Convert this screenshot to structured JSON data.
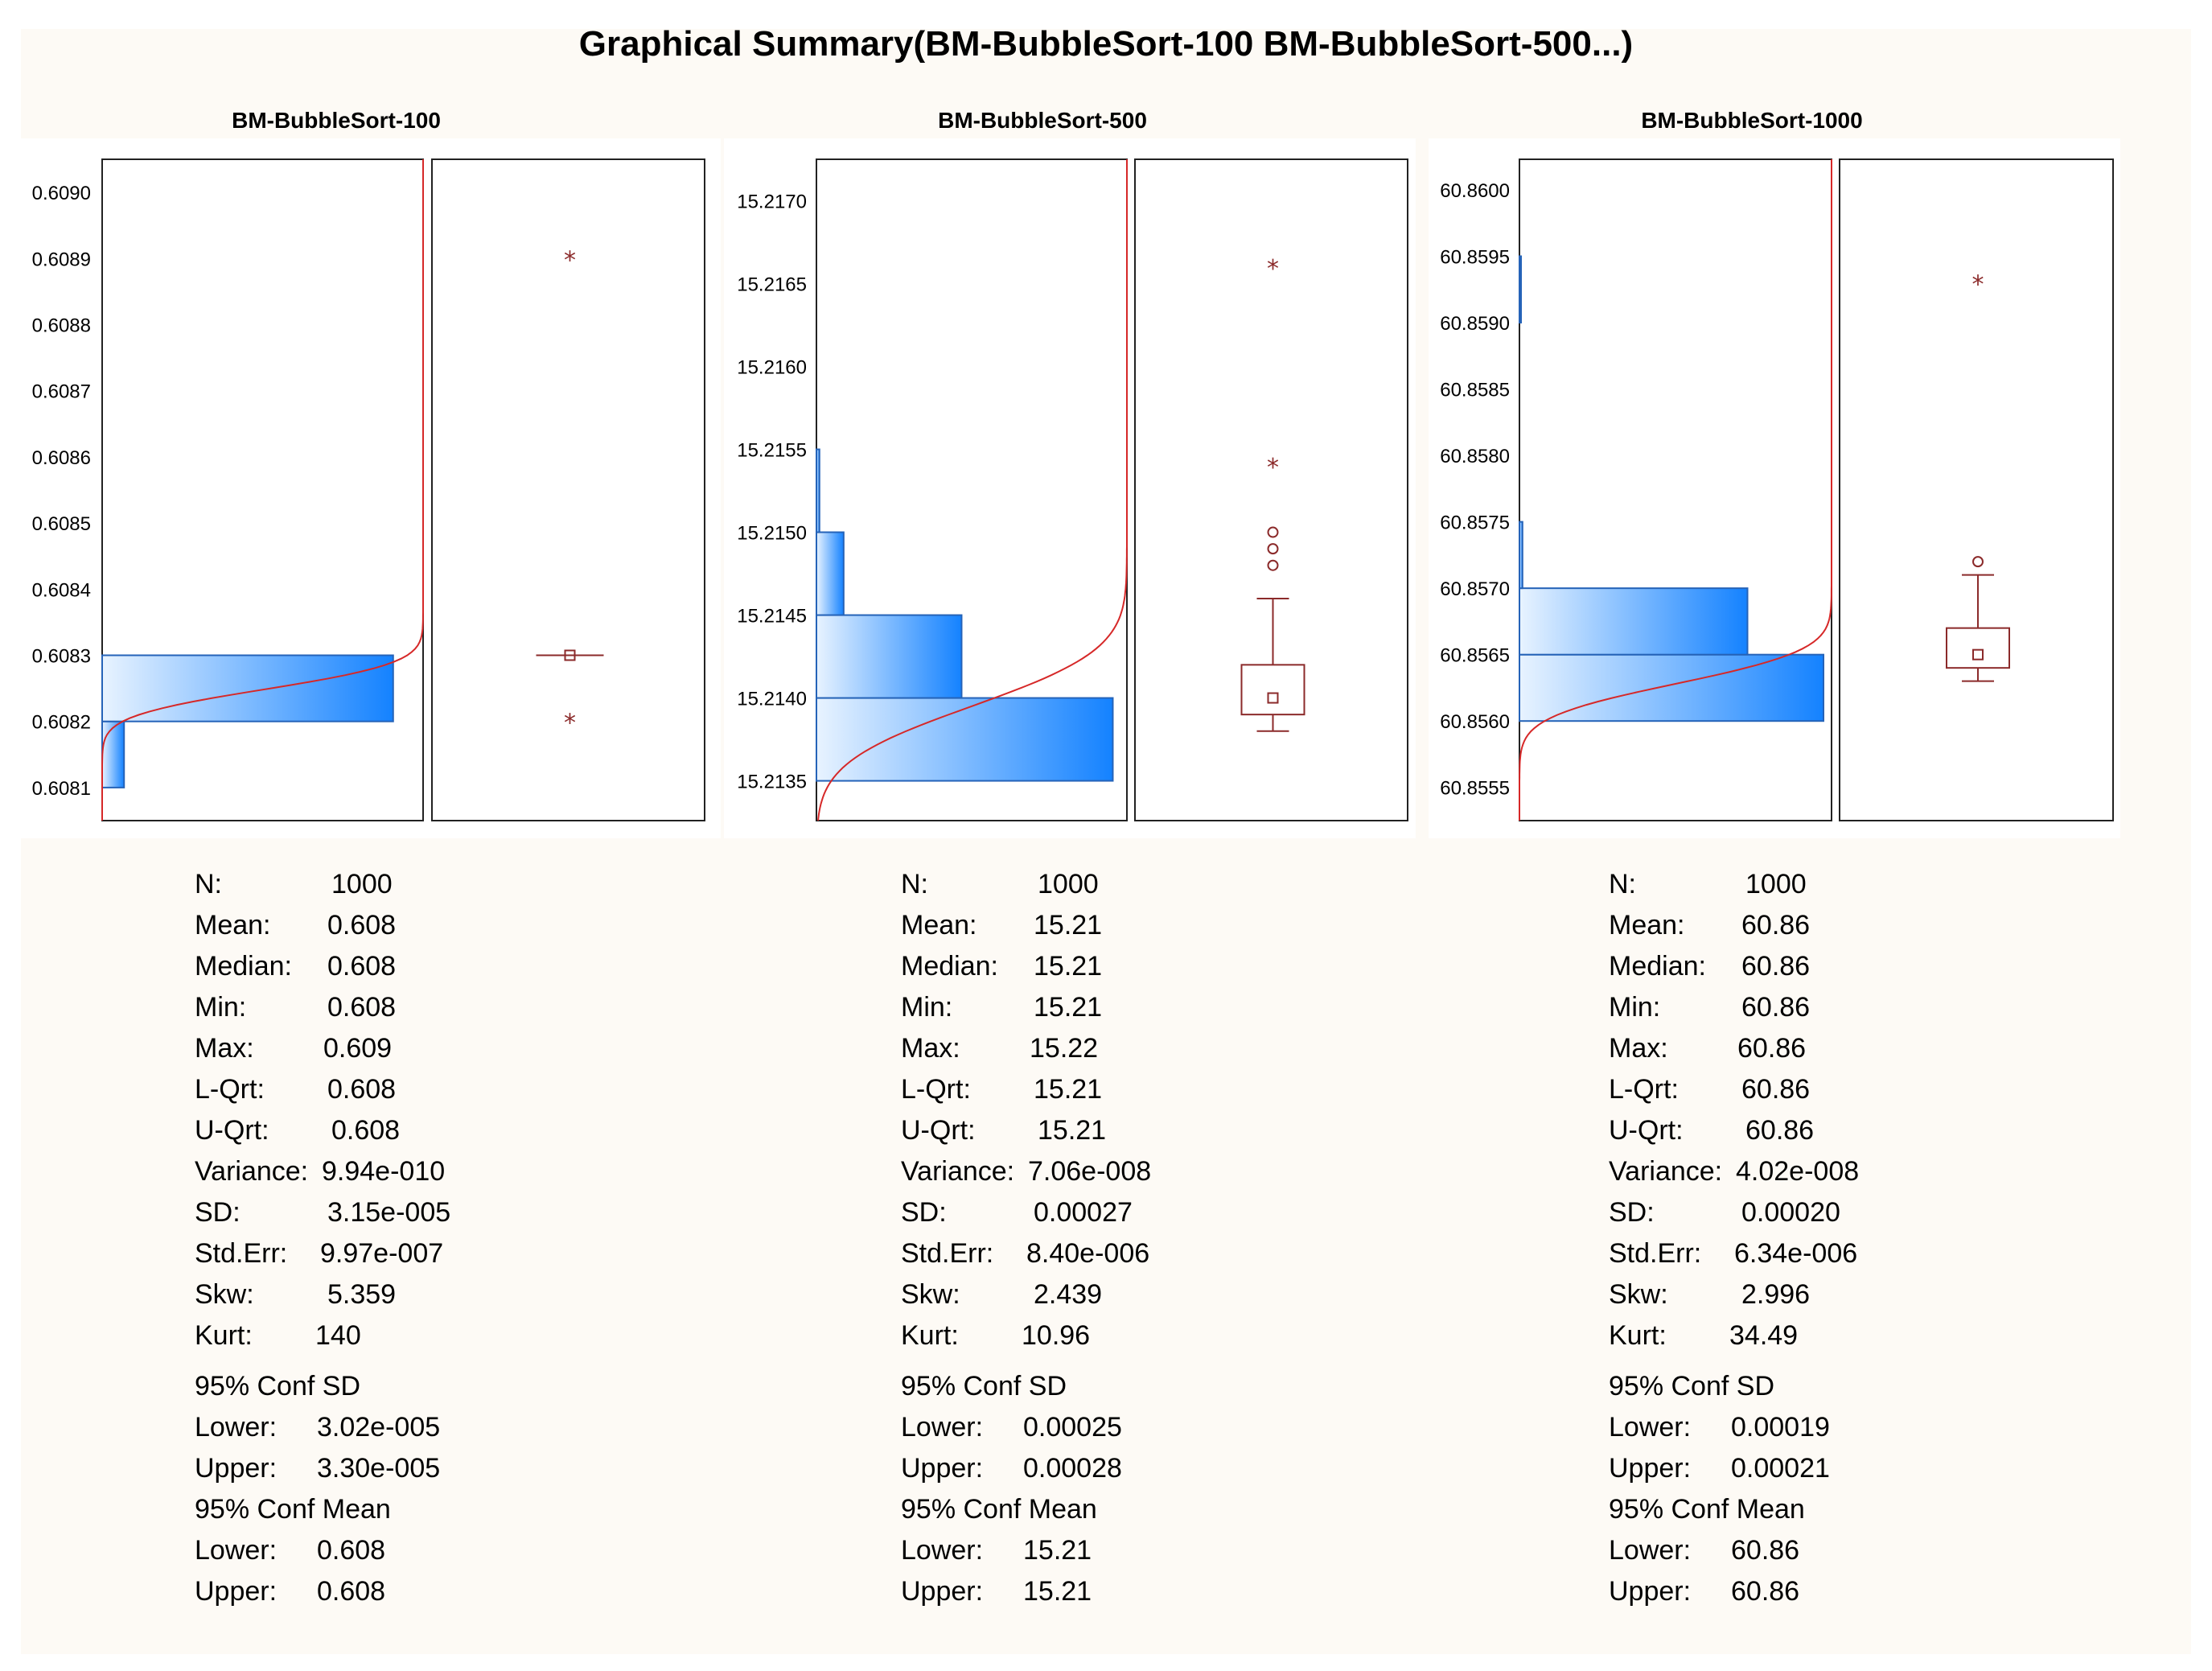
{
  "title": "Graphical Summary(BM-BubbleSort-100 BM-BubbleSort-500...)",
  "colors": {
    "background": "#fdfaf5",
    "frame": "#222222",
    "box": "#8b2a2a",
    "curve": "#d62828",
    "bar_light": "#e8f3ff",
    "bar_dark": "#1482ff",
    "bar_edge": "#2563b8"
  },
  "chart_data": [
    {
      "type": "histogram+boxplot",
      "title": "BM-BubbleSort-100",
      "orientation": "horizontal-histogram",
      "y_ticks": [
        "0.6090",
        "0.6089",
        "0.6088",
        "0.6087",
        "0.6086",
        "0.6085",
        "0.6084",
        "0.6083",
        "0.6082",
        "0.6081"
      ],
      "y_tick_values": [
        0.609,
        0.6089,
        0.6088,
        0.6087,
        0.6086,
        0.6085,
        0.6084,
        0.6083,
        0.6082,
        0.6081
      ],
      "ylim": [
        0.60805,
        0.60905
      ],
      "bins": [
        {
          "lo": 0.6081,
          "hi": 0.6082,
          "rel": 0.07
        },
        {
          "lo": 0.6082,
          "hi": 0.6083,
          "rel": 0.93
        }
      ],
      "normal_curve": {
        "mean": 0.608248,
        "sd": 3.15e-05
      },
      "box": {
        "min": 0.6083,
        "q1": 0.6083,
        "median": 0.6083,
        "q3": 0.6083,
        "max": 0.6083,
        "mean": 0.6083
      },
      "outliers_circle": [],
      "outliers_star": [
        0.6089,
        0.6082
      ]
    },
    {
      "type": "histogram+boxplot",
      "title": "BM-BubbleSort-500",
      "orientation": "horizontal-histogram",
      "y_ticks": [
        "15.2170",
        "15.2165",
        "15.2160",
        "15.2155",
        "15.2150",
        "15.2145",
        "15.2140",
        "15.2135"
      ],
      "y_tick_values": [
        15.217,
        15.2165,
        15.216,
        15.2155,
        15.215,
        15.2145,
        15.214,
        15.2135
      ],
      "ylim": [
        15.21326,
        15.21725
      ],
      "bins": [
        {
          "lo": 15.2135,
          "hi": 15.214,
          "rel": 0.98
        },
        {
          "lo": 15.214,
          "hi": 15.2145,
          "rel": 0.48
        },
        {
          "lo": 15.2145,
          "hi": 15.215,
          "rel": 0.09
        },
        {
          "lo": 15.215,
          "hi": 15.2155,
          "rel": 0.01
        }
      ],
      "normal_curve": {
        "mean": 15.21395,
        "sd": 0.00027
      },
      "box": {
        "min": 15.2138,
        "q1": 15.2139,
        "median": 15.2142,
        "q3": 15.2142,
        "max": 15.2146,
        "mean": 15.214
      },
      "outliers_circle": [
        15.2148,
        15.2149,
        15.215
      ],
      "outliers_star": [
        15.2166,
        15.2154
      ]
    },
    {
      "type": "histogram+boxplot",
      "title": "BM-BubbleSort-1000",
      "orientation": "horizontal-histogram",
      "y_ticks": [
        "60.8600",
        "60.8595",
        "60.8590",
        "60.8585",
        "60.8580",
        "60.8575",
        "60.8570",
        "60.8565",
        "60.8560",
        "60.8555"
      ],
      "y_tick_values": [
        60.86,
        60.8595,
        60.859,
        60.8585,
        60.858,
        60.8575,
        60.857,
        60.8565,
        60.856,
        60.8555
      ],
      "ylim": [
        60.85525,
        60.86023
      ],
      "bins": [
        {
          "lo": 60.856,
          "hi": 60.8565,
          "rel": 1.0
        },
        {
          "lo": 60.8565,
          "hi": 60.857,
          "rel": 0.75
        },
        {
          "lo": 60.857,
          "hi": 60.8575,
          "rel": 0.01
        },
        {
          "lo": 60.859,
          "hi": 60.8595,
          "rel": 0.003
        }
      ],
      "normal_curve": {
        "mean": 60.85628,
        "sd": 0.0002
      },
      "box": {
        "min": 60.8563,
        "q1": 60.8564,
        "median": 60.8565,
        "q3": 60.8567,
        "max": 60.8571,
        "mean": 60.8565
      },
      "outliers_circle": [
        60.8572
      ],
      "outliers_star": [
        60.8593
      ]
    }
  ],
  "stats": [
    {
      "rows": [
        {
          "label": "N:",
          "value": "1000"
        },
        {
          "label": "Mean:",
          "value": "0.608"
        },
        {
          "label": "Median:",
          "value": "0.608"
        },
        {
          "label": "Min:",
          "value": "0.608"
        },
        {
          "label": "Max:",
          "value": "0.609"
        },
        {
          "label": "L-Qrt:",
          "value": "0.608"
        },
        {
          "label": "U-Qrt:",
          "value": "0.608"
        },
        {
          "label": "Variance:",
          "value": "9.94e-010"
        },
        {
          "label": "SD:",
          "value": "3.15e-005"
        },
        {
          "label": "Std.Err:",
          "value": "9.97e-007"
        },
        {
          "label": "Skw:",
          "value": "5.359"
        },
        {
          "label": "Kurt:",
          "value": "140"
        }
      ],
      "conf_sd_title": "95% Conf SD",
      "conf_sd": [
        {
          "label": "Lower:",
          "value": "3.02e-005"
        },
        {
          "label": "Upper:",
          "value": "3.30e-005"
        }
      ],
      "conf_mean_title": "95% Conf Mean",
      "conf_mean": [
        {
          "label": "Lower:",
          "value": "0.608"
        },
        {
          "label": "Upper:",
          "value": "0.608"
        }
      ]
    },
    {
      "rows": [
        {
          "label": "N:",
          "value": "1000"
        },
        {
          "label": "Mean:",
          "value": "15.21"
        },
        {
          "label": "Median:",
          "value": "15.21"
        },
        {
          "label": "Min:",
          "value": "15.21"
        },
        {
          "label": "Max:",
          "value": "15.22"
        },
        {
          "label": "L-Qrt:",
          "value": "15.21"
        },
        {
          "label": "U-Qrt:",
          "value": "15.21"
        },
        {
          "label": "Variance:",
          "value": "7.06e-008"
        },
        {
          "label": "SD:",
          "value": "0.00027"
        },
        {
          "label": "Std.Err:",
          "value": "8.40e-006"
        },
        {
          "label": "Skw:",
          "value": "2.439"
        },
        {
          "label": "Kurt:",
          "value": "10.96"
        }
      ],
      "conf_sd_title": "95% Conf SD",
      "conf_sd": [
        {
          "label": "Lower:",
          "value": "0.00025"
        },
        {
          "label": "Upper:",
          "value": "0.00028"
        }
      ],
      "conf_mean_title": "95% Conf Mean",
      "conf_mean": [
        {
          "label": "Lower:",
          "value": "15.21"
        },
        {
          "label": "Upper:",
          "value": "15.21"
        }
      ]
    },
    {
      "rows": [
        {
          "label": "N:",
          "value": "1000"
        },
        {
          "label": "Mean:",
          "value": "60.86"
        },
        {
          "label": "Median:",
          "value": "60.86"
        },
        {
          "label": "Min:",
          "value": "60.86"
        },
        {
          "label": "Max:",
          "value": "60.86"
        },
        {
          "label": "L-Qrt:",
          "value": "60.86"
        },
        {
          "label": "U-Qrt:",
          "value": "60.86"
        },
        {
          "label": "Variance:",
          "value": "4.02e-008"
        },
        {
          "label": "SD:",
          "value": "0.00020"
        },
        {
          "label": "Std.Err:",
          "value": "6.34e-006"
        },
        {
          "label": "Skw:",
          "value": "2.996"
        },
        {
          "label": "Kurt:",
          "value": "34.49"
        }
      ],
      "conf_sd_title": "95% Conf SD",
      "conf_sd": [
        {
          "label": "Lower:",
          "value": "0.00019"
        },
        {
          "label": "Upper:",
          "value": "0.00021"
        }
      ],
      "conf_mean_title": "95% Conf Mean",
      "conf_mean": [
        {
          "label": "Lower:",
          "value": "60.86"
        },
        {
          "label": "Upper:",
          "value": "60.86"
        }
      ]
    }
  ]
}
